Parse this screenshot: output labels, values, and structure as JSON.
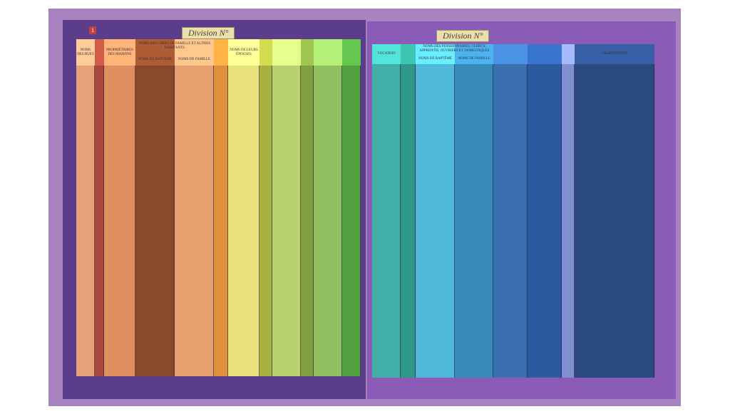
{
  "left_page": {
    "page_number": "1",
    "title": "Division N°",
    "headers": [
      "NOMS DES RUES",
      "PROPRIÉTAIRES DES MAISONS",
      "NOMS DES CHEFS DE FAMILLE ET AUTRES HABITANTS",
      "NOMS DE BAPTÊME",
      "NOMS DE FAMILLE",
      "NOMS DE LEURS ÉPOUSES"
    ]
  },
  "right_page": {
    "title": "Division N°",
    "headers": [
      "VOCATION",
      "NOMS DES PENSIONNAIRES, CLERCS, APPRENTIS, OUVRIERS ET DOMESTIQUES",
      "NOMS DE BAPTÊME",
      "NOMS DE FAMILLE",
      "OBSERVATIONS"
    ]
  }
}
